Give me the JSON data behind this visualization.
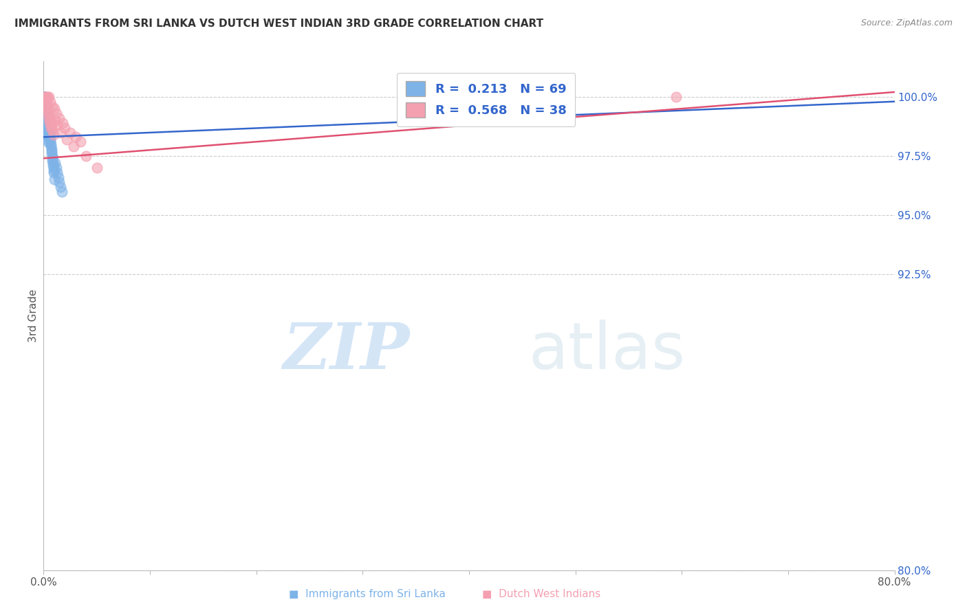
{
  "title": "IMMIGRANTS FROM SRI LANKA VS DUTCH WEST INDIAN 3RD GRADE CORRELATION CHART",
  "source": "Source: ZipAtlas.com",
  "ylabel": "3rd Grade",
  "xlim": [
    0.0,
    80.0
  ],
  "ylim": [
    80.0,
    101.5
  ],
  "ytick_values": [
    100.0,
    97.5,
    95.0,
    92.5,
    80.0
  ],
  "grid_color": "#cccccc",
  "background_color": "#ffffff",
  "sri_lanka_color": "#7EB3E8",
  "dutch_wi_color": "#F4A0B0",
  "sri_lanka_line_color": "#3366CC",
  "dutch_wi_line_color": "#E05070",
  "legend_label_blue": "Immigrants from Sri Lanka",
  "legend_label_pink": "Dutch West Indians",
  "R_sri": 0.213,
  "N_sri": 69,
  "R_dutch": 0.568,
  "N_dutch": 38,
  "watermark_zip": "ZIP",
  "watermark_atlas": "atlas",
  "sri_lanka_x": [
    0.05,
    0.08,
    0.1,
    0.1,
    0.12,
    0.15,
    0.18,
    0.2,
    0.22,
    0.25,
    0.3,
    0.35,
    0.38,
    0.4,
    0.43,
    0.45,
    0.48,
    0.5,
    0.53,
    0.55,
    0.58,
    0.6,
    0.63,
    0.65,
    0.68,
    0.7,
    0.73,
    0.75,
    0.78,
    0.8,
    0.83,
    0.85,
    0.88,
    0.9,
    0.93,
    0.95,
    0.98,
    1.0,
    1.1,
    1.2,
    1.3,
    1.4,
    1.5,
    1.6,
    1.7,
    0.05,
    0.06,
    0.07,
    0.09,
    0.11,
    0.13,
    0.14,
    0.16,
    0.17,
    0.19,
    0.21,
    0.23,
    0.24,
    0.26,
    0.27,
    0.28,
    0.29,
    0.31,
    0.32,
    0.33,
    0.34,
    0.36,
    0.37,
    0.39
  ],
  "sri_lanka_y": [
    100.0,
    100.0,
    100.0,
    99.8,
    100.0,
    99.9,
    99.7,
    99.8,
    99.6,
    99.7,
    99.5,
    99.4,
    99.2,
    99.1,
    99.0,
    98.9,
    98.8,
    98.7,
    98.6,
    98.5,
    98.4,
    98.3,
    98.2,
    98.1,
    98.0,
    97.9,
    97.8,
    97.7,
    97.6,
    97.5,
    97.4,
    97.3,
    97.2,
    97.1,
    97.0,
    96.9,
    96.8,
    96.5,
    97.2,
    97.0,
    96.8,
    96.6,
    96.4,
    96.2,
    96.0,
    100.0,
    100.0,
    100.0,
    100.0,
    99.9,
    99.9,
    99.8,
    99.7,
    99.6,
    99.5,
    99.4,
    99.3,
    99.2,
    99.1,
    99.0,
    98.9,
    98.8,
    98.7,
    98.6,
    98.5,
    98.4,
    98.3,
    98.2,
    98.1
  ],
  "dutch_wi_x": [
    0.1,
    0.2,
    0.3,
    0.4,
    0.5,
    0.6,
    0.8,
    1.0,
    1.2,
    1.5,
    1.8,
    2.0,
    2.5,
    3.0,
    3.5,
    0.15,
    0.25,
    0.35,
    0.45,
    0.55,
    0.65,
    0.75,
    0.85,
    0.95,
    1.1,
    1.3,
    1.6,
    2.2,
    2.8,
    4.0,
    5.0,
    0.18,
    0.28,
    0.38,
    0.48,
    0.58,
    0.68,
    59.5
  ],
  "dutch_wi_y": [
    100.0,
    100.0,
    100.0,
    100.0,
    100.0,
    99.8,
    99.6,
    99.5,
    99.3,
    99.1,
    98.9,
    98.7,
    98.5,
    98.3,
    98.1,
    99.9,
    99.8,
    99.6,
    99.4,
    99.2,
    99.0,
    98.8,
    98.6,
    98.4,
    99.0,
    98.8,
    98.5,
    98.2,
    97.9,
    97.5,
    97.0,
    99.7,
    99.5,
    99.3,
    99.1,
    98.9,
    98.7,
    100.0
  ],
  "sri_line_x0": 0.0,
  "sri_line_x1": 80.0,
  "sri_line_y0": 98.3,
  "sri_line_y1": 99.8,
  "dutch_line_x0": 0.0,
  "dutch_line_x1": 80.0,
  "dutch_line_y0": 97.4,
  "dutch_line_y1": 100.2
}
